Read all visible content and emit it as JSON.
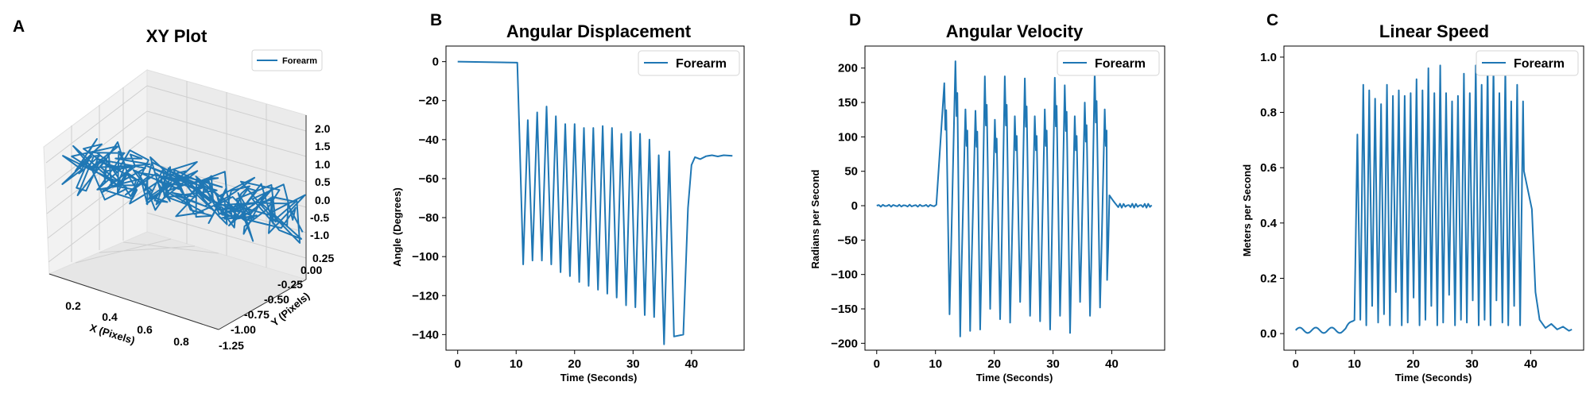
{
  "chart_data": [
    {
      "panel": "A",
      "type": "line",
      "projection": "3d",
      "title": "XY Plot",
      "xlabel": "X (Pixels)",
      "ylabel": "Y (Pixels)",
      "zlabel": "",
      "xticks": [
        "0.2",
        "0.4",
        "0.6",
        "0.8"
      ],
      "yticks": [
        "0.25",
        "0.00",
        "-0.25",
        "-0.50",
        "-0.75",
        "-1.00",
        "-1.25"
      ],
      "zticks": [
        "2.0",
        "1.5",
        "1.0",
        "0.5",
        "0.0",
        "-0.5",
        "-1.0"
      ],
      "xlim": [
        0.1,
        0.9
      ],
      "ylim": [
        -1.25,
        0.25
      ],
      "zlim": [
        -1.0,
        2.0
      ],
      "series": [
        {
          "name": "Forearm",
          "color": "#1f77b4"
        }
      ],
      "legend": "top-right",
      "grid": true
    },
    {
      "panel": "B",
      "type": "line",
      "title": "Angular Displacement",
      "xlabel": "Time (Seconds)",
      "ylabel": "Angle (Degrees)",
      "xlim": [
        -2,
        49
      ],
      "ylim": [
        -148,
        8
      ],
      "xticks": [
        0,
        10,
        20,
        30,
        40
      ],
      "yticks": [
        0,
        -20,
        -40,
        -60,
        -80,
        -100,
        -120,
        -140
      ],
      "series": [
        {
          "name": "Forearm",
          "color": "#1f77b4"
        }
      ],
      "troughs": [
        [
          11.2,
          -104
        ],
        [
          12.8,
          -102
        ],
        [
          14.4,
          -102
        ],
        [
          16.0,
          -104
        ],
        [
          17.6,
          -108
        ],
        [
          19.2,
          -110
        ],
        [
          20.8,
          -113
        ],
        [
          22.4,
          -115
        ],
        [
          24.0,
          -117
        ],
        [
          25.6,
          -119
        ],
        [
          27.2,
          -121
        ],
        [
          28.8,
          -125
        ],
        [
          30.4,
          -126
        ],
        [
          32.0,
          -130
        ],
        [
          33.6,
          -131
        ],
        [
          35.3,
          -145
        ],
        [
          37.0,
          -141
        ],
        [
          38.6,
          -140
        ]
      ],
      "peaks": [
        [
          12.0,
          -30
        ],
        [
          13.6,
          -26
        ],
        [
          15.2,
          -23
        ],
        [
          16.8,
          -28
        ],
        [
          18.4,
          -32
        ],
        [
          20.0,
          -32
        ],
        [
          21.6,
          -34
        ],
        [
          23.2,
          -34
        ],
        [
          24.8,
          -33
        ],
        [
          26.4,
          -34
        ],
        [
          28.0,
          -37
        ],
        [
          29.6,
          -36
        ],
        [
          31.2,
          -37
        ],
        [
          32.8,
          -40
        ],
        [
          34.4,
          -48
        ],
        [
          36.2,
          -46
        ]
      ],
      "settle": -48,
      "legend": "top-right",
      "grid": false
    },
    {
      "panel": "D",
      "type": "line",
      "title": "Angular Velocity",
      "xlabel": "Time (Seconds)",
      "ylabel": "Radians per Second",
      "xlim": [
        -2,
        49
      ],
      "ylim": [
        -210,
        232
      ],
      "xticks": [
        0,
        10,
        20,
        30,
        40
      ],
      "yticks": [
        200,
        150,
        100,
        50,
        0,
        -50,
        -100,
        -150,
        -200
      ],
      "series": [
        {
          "name": "Forearm",
          "color": "#1f77b4"
        }
      ],
      "peaks": [
        [
          11.5,
          178
        ],
        [
          13.4,
          210
        ],
        [
          15.1,
          140
        ],
        [
          16.8,
          138
        ],
        [
          18.4,
          188
        ],
        [
          20.1,
          125
        ],
        [
          21.8,
          188
        ],
        [
          23.5,
          130
        ],
        [
          25.2,
          185
        ],
        [
          26.9,
          130
        ],
        [
          28.6,
          140
        ],
        [
          30.3,
          186
        ],
        [
          32.0,
          175
        ],
        [
          33.7,
          130
        ],
        [
          35.4,
          150
        ],
        [
          37.1,
          195
        ],
        [
          38.8,
          140
        ]
      ],
      "troughs": [
        [
          12.4,
          -158
        ],
        [
          14.2,
          -190
        ],
        [
          15.9,
          -182
        ],
        [
          17.6,
          -180
        ],
        [
          19.3,
          -150
        ],
        [
          21.0,
          -165
        ],
        [
          22.7,
          -170
        ],
        [
          24.4,
          -140
        ],
        [
          26.1,
          -160
        ],
        [
          27.8,
          -168
        ],
        [
          29.5,
          -180
        ],
        [
          31.2,
          -160
        ],
        [
          32.9,
          -185
        ],
        [
          34.6,
          -140
        ],
        [
          36.3,
          -160
        ],
        [
          38.0,
          -148
        ],
        [
          39.2,
          -108
        ]
      ],
      "legend": "top-right",
      "grid": false
    },
    {
      "panel": "C",
      "type": "line",
      "title": "Linear Speed",
      "xlabel": "Time (Seconds)",
      "ylabel": "Meters per Second",
      "xlim": [
        -2,
        49
      ],
      "ylim": [
        -0.06,
        1.04
      ],
      "xticks": [
        0,
        10,
        20,
        30,
        40
      ],
      "yticks": [
        0.0,
        0.2,
        0.4,
        0.6,
        0.8,
        1.0
      ],
      "series": [
        {
          "name": "Forearm",
          "color": "#1f77b4"
        }
      ],
      "spikes": [
        0.72,
        0.9,
        0.88,
        0.85,
        0.83,
        0.9,
        0.86,
        0.88,
        0.86,
        0.87,
        0.92,
        0.88,
        0.96,
        0.87,
        0.97,
        0.87,
        0.84,
        0.86,
        0.94,
        0.87,
        0.97,
        0.9,
        0.97,
        0.97,
        0.87,
        0.96,
        0.84,
        0.9,
        0.84
      ],
      "dips": [
        0.05,
        0.03,
        0.1,
        0.04,
        0.07,
        0.03,
        0.15,
        0.03,
        0.04,
        0.13,
        0.03,
        0.05,
        0.1,
        0.03,
        0.04,
        0.14,
        0.03,
        0.05,
        0.04,
        0.12,
        0.03,
        0.05,
        0.03,
        0.12,
        0.04,
        0.03,
        0.1,
        0.03
      ],
      "legend": "top-right",
      "grid": false
    }
  ]
}
